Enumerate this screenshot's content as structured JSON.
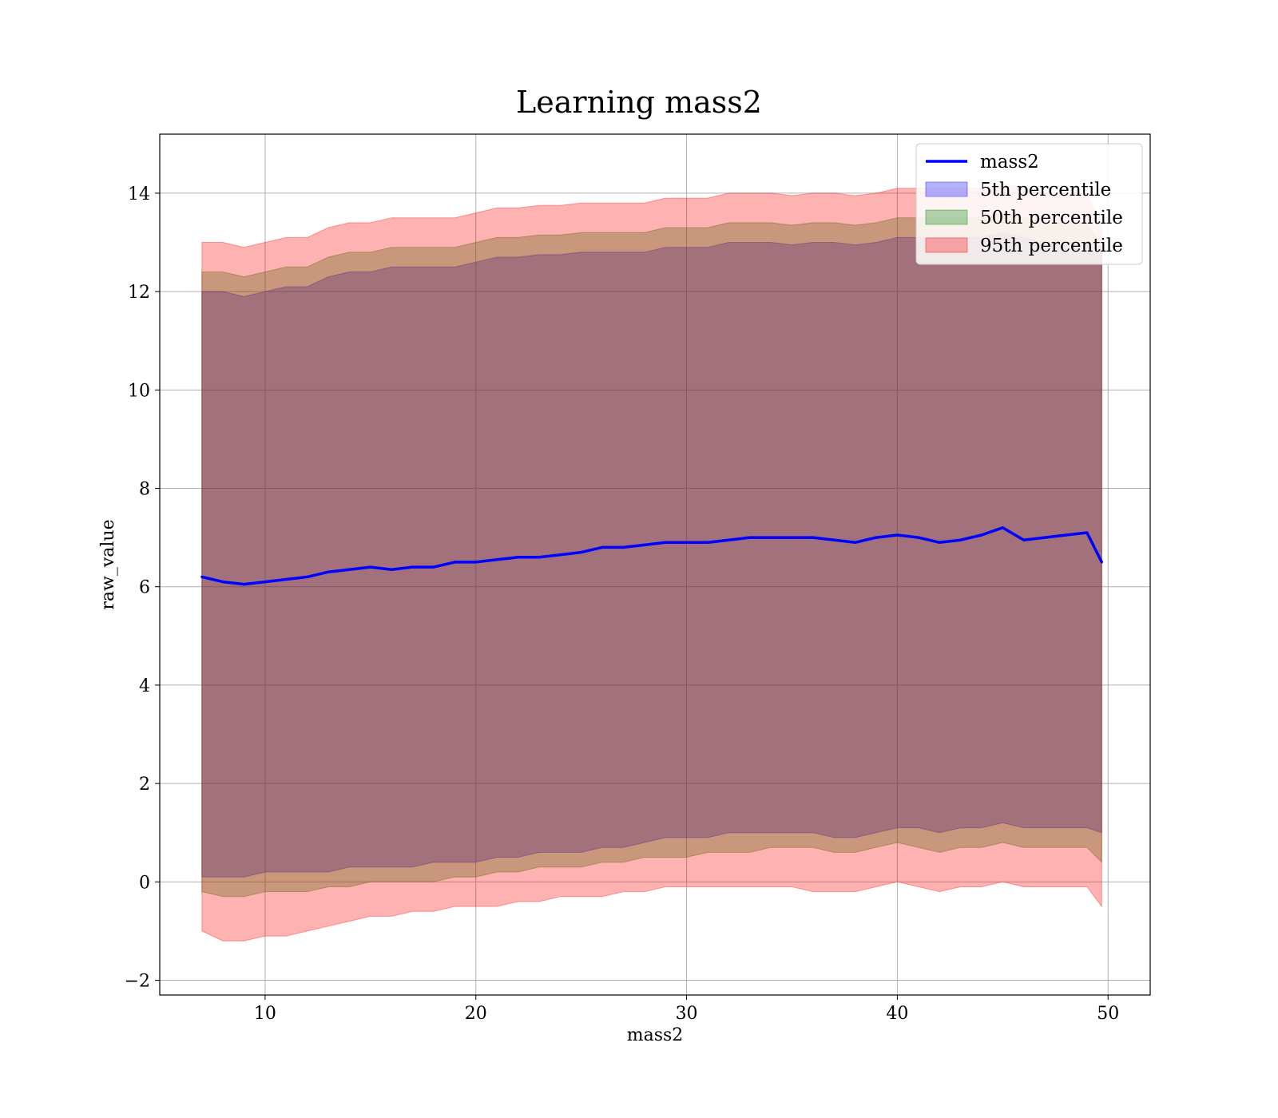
{
  "chart_data": {
    "type": "area",
    "title": "Learning mass2",
    "xlabel": "mass2",
    "ylabel": "raw_value",
    "xlim": [
      5,
      52
    ],
    "ylim": [
      -2.3,
      15.2
    ],
    "x_ticks": [
      10,
      20,
      30,
      40,
      50
    ],
    "y_ticks": [
      -2,
      0,
      2,
      4,
      6,
      8,
      10,
      12,
      14
    ],
    "x_tick_labels": [
      "10",
      "20",
      "30",
      "40",
      "50"
    ],
    "y_tick_labels": [
      "−2",
      "0",
      "2",
      "4",
      "6",
      "8",
      "10",
      "12",
      "14"
    ],
    "grid": true,
    "legend_position": "top-right",
    "x": [
      7,
      8,
      9,
      10,
      11,
      12,
      13,
      14,
      15,
      16,
      17,
      18,
      19,
      20,
      21,
      22,
      23,
      24,
      25,
      26,
      27,
      28,
      29,
      30,
      31,
      32,
      33,
      34,
      35,
      36,
      37,
      38,
      39,
      40,
      41,
      42,
      43,
      44,
      45,
      46,
      47,
      48,
      49,
      49.7
    ],
    "series": [
      {
        "name": "mass2",
        "kind": "line",
        "color": "#0000ff",
        "values": [
          6.2,
          6.1,
          6.05,
          6.1,
          6.15,
          6.2,
          6.3,
          6.35,
          6.4,
          6.35,
          6.4,
          6.4,
          6.5,
          6.5,
          6.55,
          6.6,
          6.6,
          6.65,
          6.7,
          6.8,
          6.8,
          6.85,
          6.9,
          6.9,
          6.9,
          6.95,
          7.0,
          7.0,
          7.0,
          7.0,
          6.95,
          6.9,
          7.0,
          7.05,
          7.0,
          6.9,
          6.95,
          7.05,
          7.2,
          6.95,
          7.0,
          7.05,
          7.1,
          6.5
        ]
      },
      {
        "name": "5th percentile",
        "kind": "band",
        "color": "#0000ff",
        "upper": [
          12.0,
          12.0,
          11.9,
          12.0,
          12.1,
          12.1,
          12.3,
          12.4,
          12.4,
          12.5,
          12.5,
          12.5,
          12.5,
          12.6,
          12.7,
          12.7,
          12.75,
          12.75,
          12.8,
          12.8,
          12.8,
          12.8,
          12.9,
          12.9,
          12.9,
          13.0,
          13.0,
          13.0,
          12.95,
          13.0,
          13.0,
          12.95,
          13.0,
          13.1,
          13.1,
          13.1,
          13.1,
          13.1,
          13.2,
          13.1,
          13.0,
          13.0,
          13.0,
          12.9
        ],
        "lower": [
          0.1,
          0.1,
          0.1,
          0.2,
          0.2,
          0.2,
          0.2,
          0.3,
          0.3,
          0.3,
          0.3,
          0.4,
          0.4,
          0.4,
          0.5,
          0.5,
          0.6,
          0.6,
          0.6,
          0.7,
          0.7,
          0.8,
          0.9,
          0.9,
          0.9,
          1.0,
          1.0,
          1.0,
          1.0,
          1.0,
          0.9,
          0.9,
          1.0,
          1.1,
          1.1,
          1.0,
          1.1,
          1.1,
          1.2,
          1.1,
          1.1,
          1.1,
          1.1,
          1.0
        ]
      },
      {
        "name": "50th percentile",
        "kind": "band",
        "color": "#008000",
        "upper": [
          12.4,
          12.4,
          12.3,
          12.4,
          12.5,
          12.5,
          12.7,
          12.8,
          12.8,
          12.9,
          12.9,
          12.9,
          12.9,
          13.0,
          13.1,
          13.1,
          13.15,
          13.15,
          13.2,
          13.2,
          13.2,
          13.2,
          13.3,
          13.3,
          13.3,
          13.4,
          13.4,
          13.4,
          13.35,
          13.4,
          13.4,
          13.35,
          13.4,
          13.5,
          13.5,
          13.5,
          13.5,
          13.5,
          13.6,
          13.5,
          13.4,
          13.4,
          13.4,
          12.9
        ],
        "lower": [
          -0.2,
          -0.3,
          -0.3,
          -0.2,
          -0.2,
          -0.2,
          -0.1,
          -0.1,
          0.0,
          0.0,
          0.0,
          0.0,
          0.1,
          0.1,
          0.2,
          0.2,
          0.3,
          0.3,
          0.3,
          0.4,
          0.4,
          0.5,
          0.5,
          0.5,
          0.6,
          0.6,
          0.6,
          0.7,
          0.7,
          0.7,
          0.6,
          0.6,
          0.7,
          0.8,
          0.7,
          0.6,
          0.7,
          0.7,
          0.8,
          0.7,
          0.7,
          0.7,
          0.7,
          0.4
        ]
      },
      {
        "name": "95th percentile",
        "kind": "band",
        "color": "#ff0000",
        "upper": [
          13.0,
          13.0,
          12.9,
          13.0,
          13.1,
          13.1,
          13.3,
          13.4,
          13.4,
          13.5,
          13.5,
          13.5,
          13.5,
          13.6,
          13.7,
          13.7,
          13.75,
          13.75,
          13.8,
          13.8,
          13.8,
          13.8,
          13.9,
          13.9,
          13.9,
          14.0,
          14.0,
          14.0,
          13.95,
          14.0,
          14.0,
          13.95,
          14.0,
          14.1,
          14.1,
          14.1,
          14.1,
          14.1,
          14.2,
          14.1,
          14.0,
          14.0,
          14.0,
          13.3
        ],
        "lower": [
          -1.0,
          -1.2,
          -1.2,
          -1.1,
          -1.1,
          -1.0,
          -0.9,
          -0.8,
          -0.7,
          -0.7,
          -0.6,
          -0.6,
          -0.5,
          -0.5,
          -0.5,
          -0.4,
          -0.4,
          -0.3,
          -0.3,
          -0.3,
          -0.2,
          -0.2,
          -0.1,
          -0.1,
          -0.1,
          -0.1,
          -0.1,
          -0.1,
          -0.1,
          -0.2,
          -0.2,
          -0.2,
          -0.1,
          0.0,
          -0.1,
          -0.2,
          -0.1,
          -0.1,
          0.0,
          -0.1,
          -0.1,
          -0.1,
          -0.1,
          -0.5
        ]
      }
    ],
    "legend": [
      {
        "label": "mass2",
        "kind": "line",
        "color": "#0000ff"
      },
      {
        "label": "5th percentile",
        "kind": "patch",
        "color": "#0000ff"
      },
      {
        "label": "50th percentile",
        "kind": "patch",
        "color": "#008000"
      },
      {
        "label": "95th percentile",
        "kind": "patch",
        "color": "#ff0000"
      }
    ]
  }
}
